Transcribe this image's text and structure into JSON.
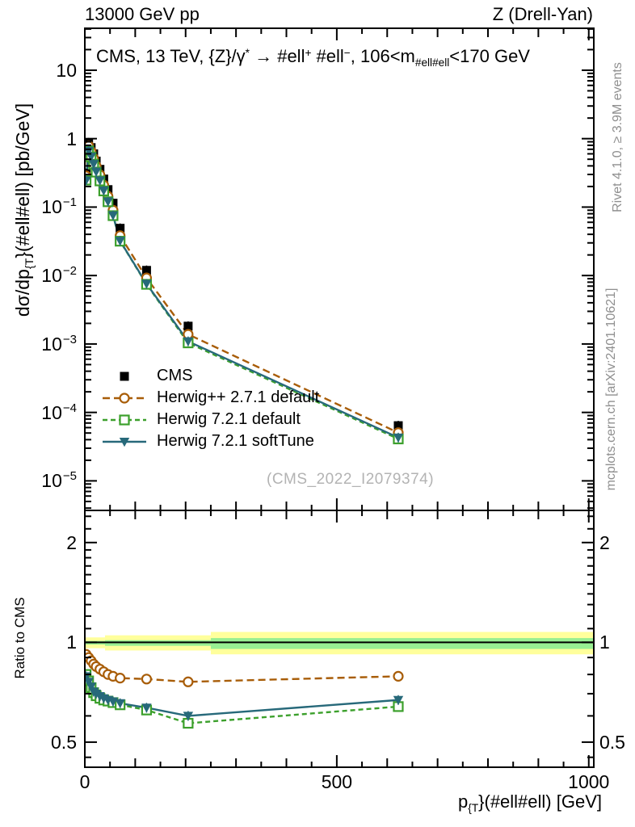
{
  "header": {
    "left": "13000 GeV pp",
    "right": "Z (Drell-Yan)"
  },
  "side_notes": {
    "top": "Rivet 4.1.0, ≥ 3.9M events",
    "bottom": "mcplots.cern.ch [arXiv:2401.10621]"
  },
  "watermark": "(CMS_2022_I2079374)",
  "title_parts": [
    {
      "t": "CMS, 13 TeV, {Z}/γ"
    },
    {
      "t": "*",
      "sup": true
    },
    {
      "t": " → #ell"
    },
    {
      "t": "+",
      "sup": true
    },
    {
      "t": " #ell"
    },
    {
      "t": "−",
      "sup": true
    },
    {
      "t": ", 106<m"
    },
    {
      "t": "#ell#ell",
      "sub": true
    },
    {
      "t": "<170 GeV"
    }
  ],
  "x_axis": {
    "label_parts": [
      {
        "t": "p"
      },
      {
        "t": "{T",
        "sub": true
      },
      {
        "t": "}(#ell#ell) [GeV]"
      }
    ],
    "ticks": [
      {
        "v": 0,
        "t": "0"
      },
      {
        "v": 500,
        "t": "500"
      },
      {
        "v": 1000,
        "t": "1000"
      }
    ],
    "minor_step": 50
  },
  "y_axis": {
    "label_parts": [
      {
        "t": "dσ/dp"
      },
      {
        "t": "{T",
        "sub": true
      },
      {
        "t": "}(#ell#ell) [pb/GeV]"
      }
    ],
    "ticks": [
      {
        "v": 10,
        "t": "10"
      },
      {
        "v": 1,
        "t": "1"
      },
      {
        "v": 0.1,
        "t": "10",
        "e": "−1"
      },
      {
        "v": 0.01,
        "t": "10",
        "e": "−2"
      },
      {
        "v": 0.001,
        "t": "10",
        "e": "−3"
      },
      {
        "v": 0.0001,
        "t": "10",
        "e": "−4"
      },
      {
        "v": 1e-05,
        "t": "10",
        "e": "−5"
      }
    ]
  },
  "ratio_axis": {
    "label": "Ratio to CMS",
    "ticks": [
      {
        "v": 2,
        "t": "2"
      },
      {
        "v": 1,
        "t": "1"
      },
      {
        "v": 0.5,
        "t": "0.5"
      }
    ],
    "minors": [
      0.45,
      0.6,
      0.7,
      0.8,
      0.9,
      1.1,
      1.2,
      1.3,
      1.4,
      1.5,
      1.6,
      1.7,
      1.8,
      1.9,
      2.2,
      2.4
    ]
  },
  "colors": {
    "cms": "#000000",
    "herwigpp": "#a85d08",
    "herwig7_default": "#3ca02c",
    "herwig7_soft": "#27697a",
    "band_yellow": "#ffff9c",
    "band_green": "#98ef92",
    "note_gray": "#8f8f8f",
    "watermark_gray": "#b3b3b3"
  },
  "legend": [
    {
      "label": "CMS",
      "color_key": "cms",
      "marker": "square_filled",
      "line": "none"
    },
    {
      "label": "Herwig++ 2.7.1 default",
      "color_key": "herwigpp",
      "marker": "circle_open",
      "line": "dash"
    },
    {
      "label": "Herwig 7.2.1 default",
      "color_key": "herwig7_default",
      "marker": "square_open",
      "line": "dash"
    },
    {
      "label": "Herwig 7.2.1 softTune",
      "color_key": "herwig7_soft",
      "marker": "triangle_down",
      "line": "solid"
    }
  ],
  "chart_data": {
    "type": "line",
    "title": "CMS, 13 TeV, Z/γ* → ell+ ell−, 106<m(ell ell)<170 GeV",
    "xlabel": "pT(ell ell) [GeV]",
    "ylabel": "dσ/dpT(ell ell) [pb/GeV]",
    "x_scale": "linear",
    "y_scale": "log",
    "xlim": [
      0,
      1010
    ],
    "ylim": [
      3.7e-06,
      41
    ],
    "ratio_ylim": [
      0.42,
      2.5
    ],
    "grid": false,
    "legend_position": "left-middle",
    "x": [
      2.5,
      7.5,
      12.5,
      17.5,
      22.5,
      30,
      37.5,
      46,
      56,
      70,
      122.5,
      205,
      622
    ],
    "series": [
      {
        "name": "CMS",
        "role": "data",
        "color_key": "cms",
        "marker": "square_filled",
        "line": "none",
        "values": [
          0.31,
          0.87,
          0.74,
          0.6,
          0.47,
          0.356,
          0.257,
          0.18,
          0.114,
          0.049,
          0.0119,
          0.00182,
          6.4e-05
        ]
      },
      {
        "name": "Herwig++ 2.7.1 default",
        "role": "mc",
        "color_key": "herwigpp",
        "marker": "circle_open",
        "line": "dash",
        "ratio_to_cms": [
          0.92,
          0.9,
          0.88,
          0.86,
          0.845,
          0.83,
          0.815,
          0.8,
          0.79,
          0.78,
          0.775,
          0.76,
          0.79
        ]
      },
      {
        "name": "Herwig 7.2.1 default",
        "role": "mc",
        "color_key": "herwig7_default",
        "marker": "square_open",
        "line": "dash",
        "ratio_to_cms": [
          0.8,
          0.765,
          0.73,
          0.705,
          0.69,
          0.678,
          0.67,
          0.665,
          0.658,
          0.648,
          0.625,
          0.57,
          0.64
        ]
      },
      {
        "name": "Herwig 7.2.1 softTune",
        "role": "mc",
        "color_key": "herwig7_soft",
        "marker": "triangle_down",
        "line": "solid",
        "ratio_to_cms": [
          0.79,
          0.76,
          0.735,
          0.71,
          0.7,
          0.688,
          0.678,
          0.67,
          0.663,
          0.655,
          0.635,
          0.6,
          0.67
        ]
      }
    ],
    "ratio_panel": {
      "ylabel": "Ratio to CMS",
      "reference_line": 1,
      "bands": {
        "yellow": [
          {
            "x0": 0,
            "x1": 40,
            "lo": 0.96,
            "hi": 1.035
          },
          {
            "x0": 40,
            "x1": 250,
            "lo": 0.945,
            "hi": 1.05
          },
          {
            "x0": 250,
            "x1": 1010,
            "lo": 0.92,
            "hi": 1.075
          }
        ],
        "green": [
          {
            "x0": 0,
            "x1": 40,
            "lo": 0.985,
            "hi": 1.01
          },
          {
            "x0": 40,
            "x1": 250,
            "lo": 0.976,
            "hi": 1.015
          },
          {
            "x0": 250,
            "x1": 1010,
            "lo": 0.955,
            "hi": 1.03
          }
        ]
      }
    }
  }
}
